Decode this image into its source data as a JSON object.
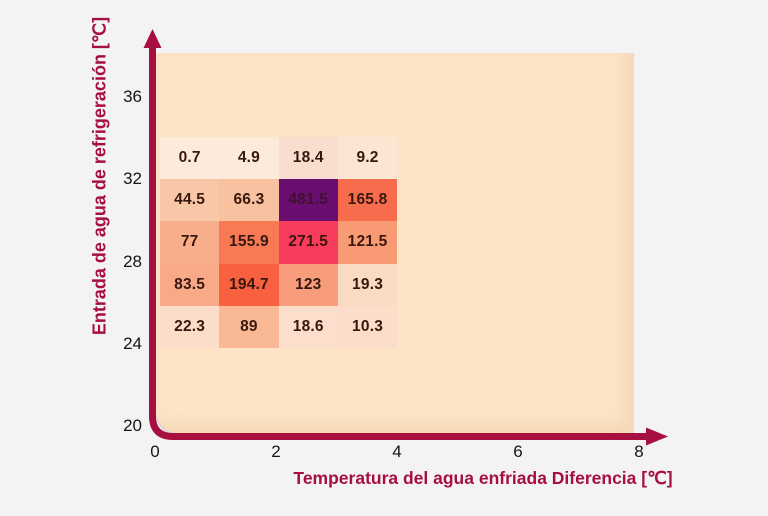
{
  "page": {
    "background": "#f3f3f4"
  },
  "chart_data": {
    "type": "heatmap",
    "title": "",
    "xlabel": "Temperatura del agua enfriada Diferencia [℃]",
    "ylabel": "Entrada de agua de refrigeración [℃]",
    "x_ticks": [
      "0",
      "2",
      "4",
      "6",
      "8"
    ],
    "y_ticks": [
      "36",
      "32",
      "28",
      "24",
      "20"
    ],
    "x_range": [
      0,
      8
    ],
    "y_range": [
      20,
      38
    ],
    "grid": "off",
    "legend": "none",
    "accent_color": "#a60f3f",
    "plot_bg_color": "#fde4c6",
    "tick_color": "#161616",
    "value_text_color": "#38180e",
    "x_cell_band": [
      0,
      4
    ],
    "y_cell_band": [
      24,
      34
    ],
    "rows": [
      {
        "y_band": "32-34",
        "cells": [
          {
            "value": "0.7",
            "color": "#fceadb"
          },
          {
            "value": "4.9",
            "color": "#fceadb"
          },
          {
            "value": "18.4",
            "color": "#f9ddce"
          },
          {
            "value": "9.2",
            "color": "#fbe5d3"
          }
        ]
      },
      {
        "y_band": "30-32",
        "cells": [
          {
            "value": "44.5",
            "color": "#f8c7a8"
          },
          {
            "value": "66.3",
            "color": "#f8c2a1"
          },
          {
            "value": "481.5",
            "color": "#690d6e",
            "text_color": "#40102e"
          },
          {
            "value": "165.8",
            "color": "#f76c4d"
          }
        ]
      },
      {
        "y_band": "28-30",
        "cells": [
          {
            "value": "77",
            "color": "#f8ae8b"
          },
          {
            "value": "155.9",
            "color": "#f77a54"
          },
          {
            "value": "271.5",
            "color": "#f93b5e"
          },
          {
            "value": "121.5",
            "color": "#f89a74"
          }
        ]
      },
      {
        "y_band": "26-28",
        "cells": [
          {
            "value": "83.5",
            "color": "#f8a988"
          },
          {
            "value": "194.7",
            "color": "#f7613f"
          },
          {
            "value": "123",
            "color": "#f89d7b"
          },
          {
            "value": "19.3",
            "color": "#fbdac4"
          }
        ]
      },
      {
        "y_band": "24-26",
        "cells": [
          {
            "value": "22.3",
            "color": "#fbddc9"
          },
          {
            "value": "89",
            "color": "#f9b996"
          },
          {
            "value": "18.6",
            "color": "#fbdfcc"
          },
          {
            "value": "10.3",
            "color": "#fbddc9"
          }
        ]
      }
    ]
  }
}
